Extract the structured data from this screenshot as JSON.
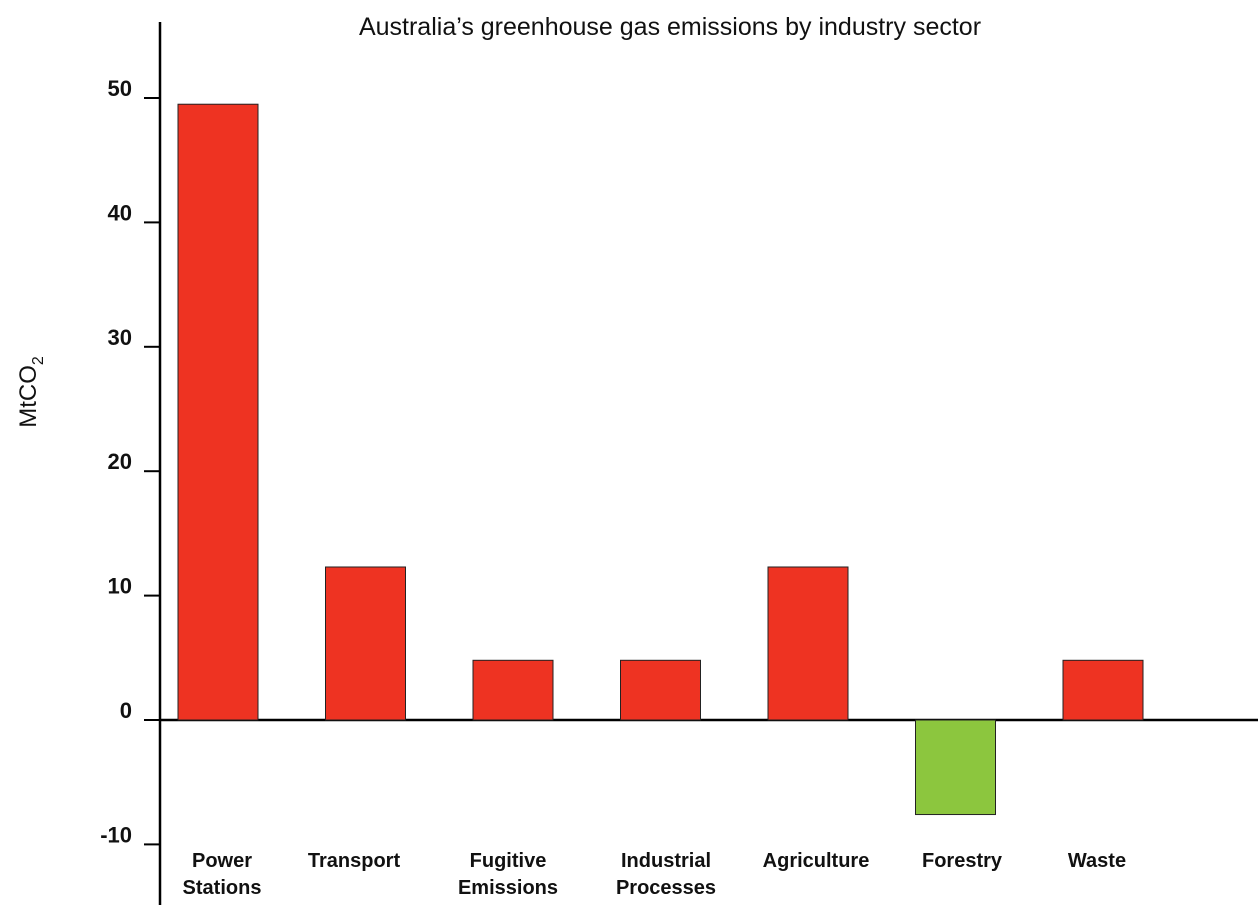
{
  "chart_data": {
    "type": "bar",
    "title": "Australia’s greenhouse gas emissions by industry sector",
    "ylabel": "MtCO",
    "ylabel_subscript": "2",
    "xlabel": "",
    "ylim": [
      -13,
      55
    ],
    "yticks": [
      "50",
      "40",
      "30",
      "20",
      "10",
      "0",
      "-10"
    ],
    "ytick_values": [
      50,
      40,
      30,
      20,
      10,
      0,
      -10
    ],
    "categories": [
      [
        "Power",
        "Stations"
      ],
      [
        "Transport"
      ],
      [
        "Fugitive",
        "Emissions"
      ],
      [
        "Industrial",
        "Processes"
      ],
      [
        "Agriculture"
      ],
      [
        "Forestry"
      ],
      [
        "Waste"
      ]
    ],
    "values": [
      49.5,
      12.3,
      4.8,
      4.8,
      12.3,
      -7.6,
      4.8
    ],
    "colors": {
      "positive": "#ee3322",
      "negative": "#8cc63e",
      "bar_stroke": "#222222",
      "axis": "#000000"
    },
    "grid": false,
    "legend": "none"
  }
}
